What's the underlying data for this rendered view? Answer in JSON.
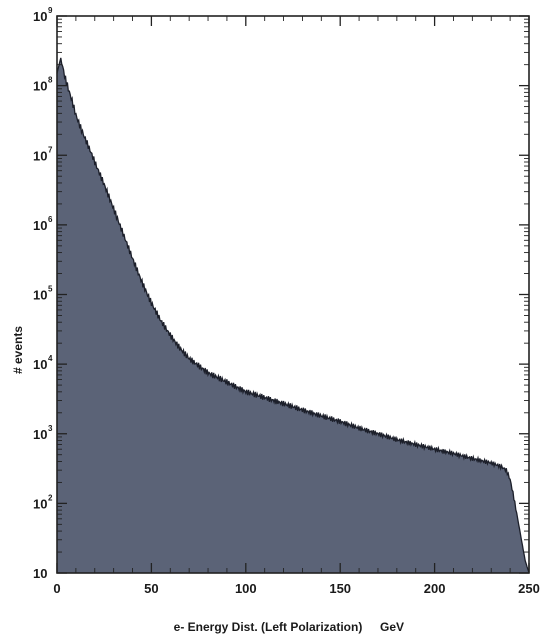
{
  "chart_data": {
    "type": "area",
    "title": "",
    "xlabel": "e- Energy Dist. (Left Polarization)",
    "xunit": "GeV",
    "ylabel": "# events",
    "xlim": [
      0,
      250
    ],
    "ylim": [
      10,
      1000000000
    ],
    "yscale": "log",
    "xticks": [
      "0",
      "50",
      "100",
      "150",
      "200",
      "250"
    ],
    "yticks": [
      {
        "base": "10",
        "exp": ""
      },
      {
        "base": "10",
        "exp": "2"
      },
      {
        "base": "10",
        "exp": "3"
      },
      {
        "base": "10",
        "exp": "4"
      },
      {
        "base": "10",
        "exp": "5"
      },
      {
        "base": "10",
        "exp": "6"
      },
      {
        "base": "10",
        "exp": "7"
      },
      {
        "base": "10",
        "exp": "8"
      },
      {
        "base": "10",
        "exp": "9"
      }
    ],
    "fill_color": "#5b6377",
    "edge_color": "#1c1f2a",
    "grid": false,
    "legend": "none",
    "series": [
      {
        "x": [
          0,
          2,
          4,
          6,
          8,
          10,
          12,
          15,
          18,
          20,
          25,
          30,
          35,
          40,
          45,
          50,
          55,
          60,
          65,
          70,
          80,
          90,
          100,
          110,
          120,
          130,
          140,
          150,
          160,
          170,
          180,
          190,
          200,
          210,
          220,
          230,
          235,
          238,
          240,
          242,
          244,
          246,
          248,
          250
        ],
        "y": [
          150000000,
          250000000,
          140000000,
          90000000,
          60000000,
          38000000,
          27000000,
          17000000,
          11000000,
          8000000,
          3800000,
          1700000,
          750000,
          330000,
          150000,
          75000,
          42000,
          26000,
          17000,
          12000,
          7500,
          5500,
          4000,
          3300,
          2700,
          2200,
          1800,
          1500,
          1200,
          1000,
          820,
          700,
          600,
          520,
          440,
          380,
          340,
          300,
          220,
          120,
          60,
          30,
          15,
          10
        ]
      }
    ]
  }
}
